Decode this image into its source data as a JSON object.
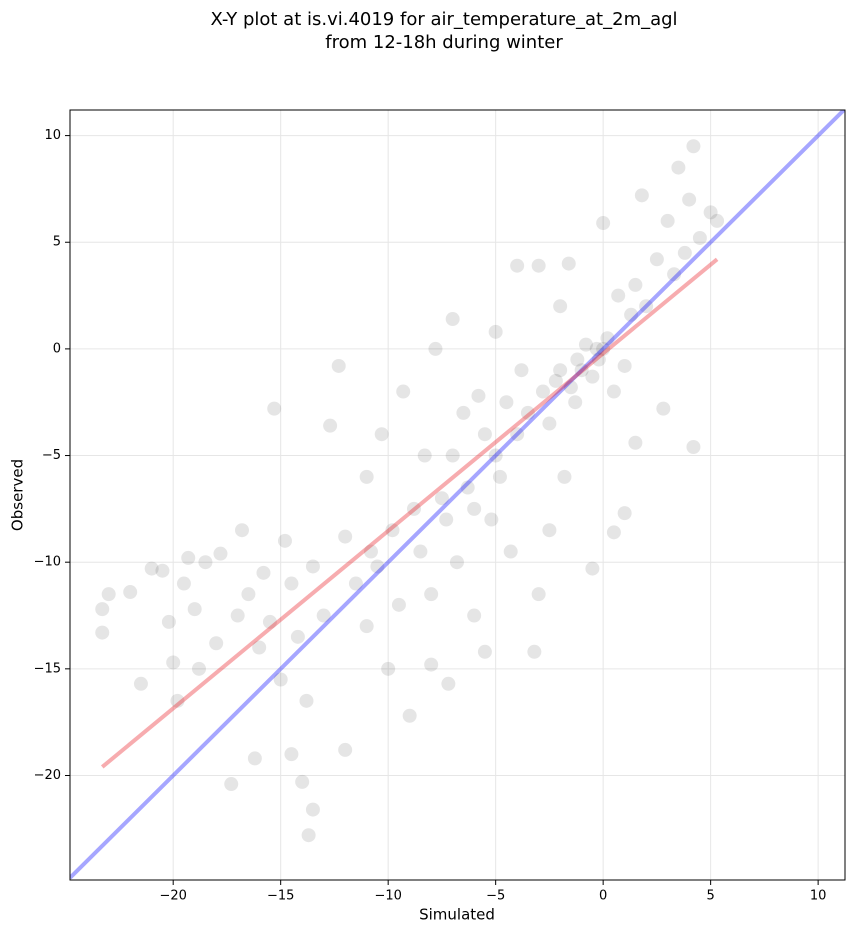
{
  "chart_data": {
    "type": "scatter",
    "title": "X-Y plot at is.vi.4019 for air_temperature_at_2m_agl",
    "subtitle": "from 12-18h during winter",
    "x_label": "Simulated",
    "y_label": "Observed",
    "xlim": [
      -24.8,
      11.25
    ],
    "ylim": [
      -24.9,
      11.2
    ],
    "xticks": [
      {
        "value": -20,
        "label": "−20"
      },
      {
        "value": -15,
        "label": "−15"
      },
      {
        "value": -10,
        "label": "−10"
      },
      {
        "value": -5,
        "label": "−5"
      },
      0,
      5,
      10
    ],
    "yticks": [
      {
        "value": -20,
        "label": "−20"
      },
      {
        "value": -15,
        "label": "−15"
      },
      {
        "value": -10,
        "label": "−10"
      },
      {
        "value": -5,
        "label": "−5"
      },
      0,
      5,
      10
    ],
    "grid": true,
    "series": [
      {
        "type": "scatter",
        "color": "#000000",
        "x": [
          -23.3,
          -23.3,
          -23,
          -22,
          -21.5,
          -21,
          -20.5,
          -20.2,
          -20,
          -19.8,
          -19.5,
          -19,
          -18.8,
          -18.5,
          -18,
          -17.8,
          -17.3,
          -17,
          -16.5,
          -16.2,
          -16,
          -15.8,
          -15.5,
          -15,
          -14.8,
          -14.5,
          -14.2,
          -14,
          -13.8,
          -13.5,
          -13.7,
          -13.5,
          -13,
          -12.7,
          -12.3,
          -12,
          -12,
          -11.5,
          -11,
          -11,
          -10.8,
          -10.5,
          -10.3,
          -10,
          -9.8,
          -9.5,
          -9.3,
          -9,
          -8.8,
          -8.5,
          -8.3,
          -8,
          -8,
          -7.8,
          -7.5,
          -7.3,
          -7.2,
          -7,
          -7,
          -6.8,
          -6.5,
          -6.3,
          -6,
          -6,
          -5.8,
          -5.5,
          -5.5,
          -5.2,
          -5,
          -5,
          -4.8,
          -4.5,
          -4.3,
          -4,
          -4,
          -3.8,
          -3.5,
          -3.2,
          -3,
          -3,
          -2.8,
          -2.5,
          -2.5,
          -2.2,
          -2,
          -2,
          -1.8,
          -1.6,
          -1.5,
          -1.3,
          -1.2,
          -1,
          -0.8,
          -0.5,
          -0.5,
          -0.3,
          -0.2,
          0,
          0,
          0.2,
          0.5,
          0.5,
          0.7,
          1,
          1,
          1.3,
          1.5,
          1.5,
          1.8,
          2,
          2.5,
          2.8,
          3,
          3.3,
          3.5,
          3.8,
          4,
          4.2,
          4.5,
          5,
          5.3,
          4.2,
          -15.3,
          -14.5,
          -16.8,
          -19.3
        ],
        "values": [
          -12.2,
          -13.3,
          -11.5,
          -11.4,
          -15.7,
          -10.3,
          -10.4,
          -12.8,
          -14.7,
          -16.5,
          -11,
          -12.2,
          -15,
          -10,
          -13.8,
          -9.6,
          -20.4,
          -12.5,
          -11.5,
          -19.2,
          -14,
          -10.5,
          -12.8,
          -15.5,
          -9,
          -11,
          -13.5,
          -20.3,
          -16.5,
          -21.6,
          -22.8,
          -10.2,
          -12.5,
          -3.6,
          -0.8,
          -8.8,
          -18.8,
          -11,
          -13,
          -6,
          -9.5,
          -10.2,
          -4,
          -15,
          -8.5,
          -12,
          -2,
          -17.2,
          -7.5,
          -9.5,
          -5,
          -11.5,
          -14.8,
          0,
          -7,
          -8,
          -15.7,
          1.4,
          -5,
          -10,
          -3,
          -6.5,
          -7.5,
          -12.5,
          -2.2,
          -4,
          -14.2,
          -8,
          -5,
          0.8,
          -6,
          -2.5,
          -9.5,
          -4,
          3.9,
          -1,
          -3,
          -14.2,
          3.9,
          -11.5,
          -2,
          -3.5,
          -8.5,
          -1.5,
          -1,
          2,
          -6,
          4,
          -1.8,
          -2.5,
          -0.5,
          -1,
          0.2,
          -1.3,
          -10.3,
          0,
          -0.5,
          0,
          5.9,
          0.5,
          -2,
          -8.6,
          2.5,
          -0.8,
          -7.7,
          1.6,
          -4.4,
          3,
          7.2,
          2,
          4.2,
          -2.8,
          6,
          3.5,
          8.5,
          4.5,
          7,
          9.5,
          5.2,
          6.4,
          6,
          -4.6,
          -2.8,
          -19,
          -8.5,
          -9.8
        ]
      },
      {
        "type": "line",
        "color": "#0000ff",
        "x": [
          -24.8,
          11.25
        ],
        "values": [
          -24.8,
          11.25
        ]
      },
      {
        "type": "line",
        "color": "#e8111a",
        "x": [
          -23.3,
          5.3
        ],
        "values": [
          -19.6,
          4.2
        ]
      }
    ]
  }
}
